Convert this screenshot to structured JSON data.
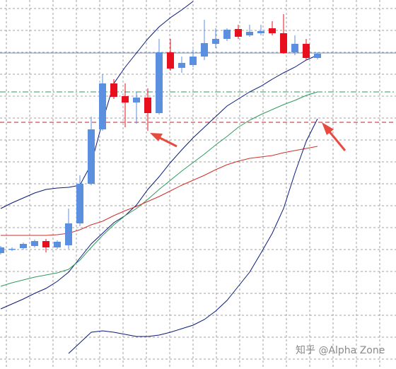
{
  "chart_data": {
    "type": "candlestick",
    "ylim": [
      0,
      522
    ],
    "up_color": "#5b8fdf",
    "down_color": "#e8101e",
    "grid": true,
    "watermark": "知乎 @Alpha Zone",
    "open": [
      164,
      169,
      171,
      174,
      181,
      172,
      175,
      206,
      262,
      339,
      404,
      386,
      377,
      384,
      362,
      448,
      426,
      430,
      442,
      460,
      467,
      481,
      472,
      475,
      482,
      475,
      448,
      460,
      440
    ],
    "high": [
      174,
      172,
      179,
      183,
      184,
      182,
      227,
      274,
      357,
      417,
      410,
      404,
      392,
      397,
      467,
      467,
      442,
      452,
      494,
      482,
      482,
      487,
      487,
      487,
      492,
      502,
      472,
      467,
      448
    ],
    "low": [
      162,
      167,
      169,
      172,
      165,
      170,
      170,
      202,
      260,
      337,
      382,
      342,
      347,
      337,
      360,
      422,
      419,
      427,
      437,
      454,
      464,
      467,
      470,
      472,
      472,
      446,
      444,
      437,
      438
    ],
    "close": [
      172,
      170,
      177,
      181,
      172,
      180,
      206,
      262,
      339,
      404,
      385,
      377,
      384,
      362,
      448,
      425,
      433,
      442,
      461,
      467,
      480,
      470,
      477,
      478,
      475,
      447,
      460,
      440,
      446
    ],
    "lines": [
      {
        "color": "#0a1a7a",
        "values": [
          227,
          235,
          242,
          249,
          254,
          256,
          257,
          260,
          290,
          350,
          404,
          427,
          447,
          467,
          484,
          497,
          508,
          520,
          null,
          null,
          null,
          null,
          null,
          null,
          null,
          null,
          null,
          null,
          null
        ]
      },
      {
        "color": "#0a1a7a",
        "values": [
          85,
          92,
          99,
          107,
          114,
          124,
          137,
          157,
          177,
          192,
          207,
          217,
          232,
          254,
          272,
          292,
          310,
          327,
          342,
          357,
          372,
          382,
          392,
          400,
          410,
          419,
          427,
          437,
          444
        ]
      },
      {
        "color": "#2e9b5e",
        "values": [
          117,
          122,
          126,
          130,
          133,
          136,
          141,
          154,
          172,
          189,
          204,
          217,
          227,
          240,
          254,
          267,
          280,
          292,
          304,
          317,
          329,
          342,
          352,
          360,
          367,
          374,
          380,
          387,
          392
        ]
      },
      {
        "color": "#d0302a",
        "values": [
          189,
          189,
          189,
          189,
          189,
          190,
          192,
          197,
          204,
          209,
          217,
          224,
          230,
          237,
          244,
          252,
          260,
          267,
          274,
          282,
          289,
          294,
          298,
          300,
          302,
          306,
          309,
          312,
          315
        ]
      },
      {
        "color": "#0a1a7a",
        "values": [
          null,
          null,
          null,
          null,
          null,
          null,
          22,
          37,
          52,
          54,
          52,
          49,
          46,
          46,
          48,
          52,
          57,
          62,
          70,
          82,
          97,
          117,
          137,
          164,
          192,
          227,
          277,
          322,
          354
        ]
      }
    ],
    "hlines": [
      {
        "value": 447,
        "color": "#7a8fb8",
        "style": "solid"
      },
      {
        "value": 392,
        "color": "#2e9b5e",
        "style": "dashdot"
      },
      {
        "value": 349,
        "color": "#c02020",
        "style": "dashed"
      }
    ]
  }
}
